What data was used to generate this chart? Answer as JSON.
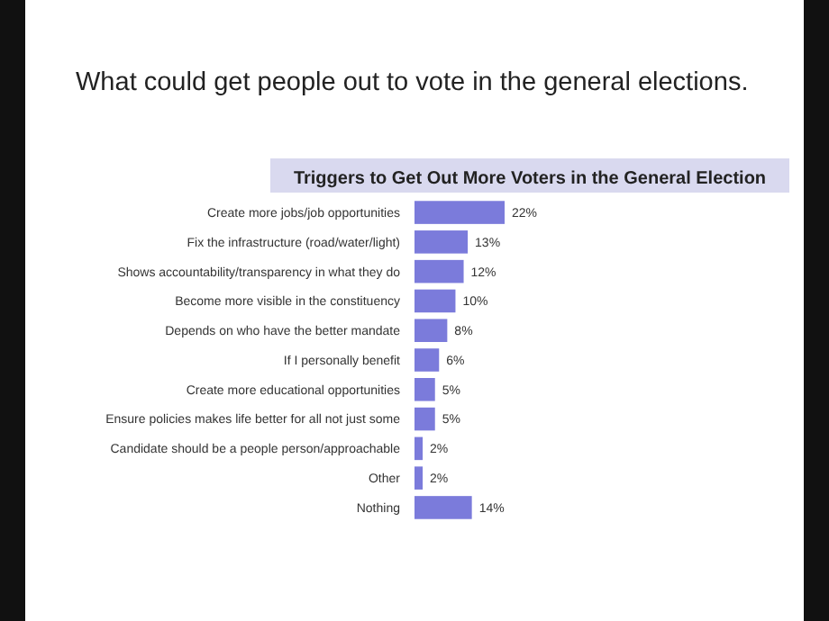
{
  "chart_data": {
    "type": "bar",
    "orientation": "horizontal",
    "title": "What could get people out to vote in the general elections.",
    "subtitle": "Triggers to Get Out More Voters in the General Election",
    "categories": [
      "Create more jobs/job opportunities",
      "Fix the infrastructure (road/water/light)",
      "Shows accountability/transparency in what they do",
      "Become more visible in the constituency",
      "Depends on who have the better mandate",
      "If I personally benefit",
      "Create more educational opportunities",
      "Ensure policies makes life better for all not just some",
      "Candidate should be a people person/approachable",
      "Other",
      "Nothing"
    ],
    "values": [
      22,
      13,
      12,
      10,
      8,
      6,
      5,
      5,
      2,
      2,
      14
    ],
    "value_labels": [
      "22%",
      "13%",
      "12%",
      "10%",
      "8%",
      "6%",
      "5%",
      "5%",
      "2%",
      "2%",
      "14%"
    ],
    "color": "#7b7bdb"
  }
}
